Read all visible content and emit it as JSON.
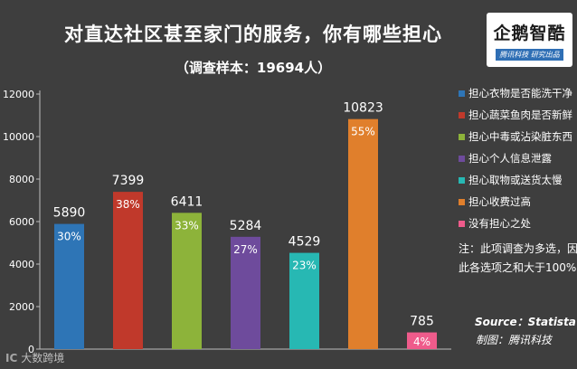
{
  "title": "对直达社区甚至家门的服务，你有哪些担心",
  "subtitle": "（调查样本：19694人）",
  "logo": {
    "main": "企鹅智酷",
    "sub": "腾讯科技  研究出品"
  },
  "note": "注：此项调查为多选，因此各选项之和大于100%",
  "source": "Source：Statista",
  "credit": "制图：腾讯科技",
  "watermark": {
    "logo": "IC",
    "text": "大数跨境"
  },
  "chart_data": {
    "type": "bar",
    "categories": [
      "担心衣物是否能洗干净",
      "担心蔬菜鱼肉是否新鲜",
      "担心中毒或沾染脏东西",
      "担心个人信息泄露",
      "担心取物或送货太慢",
      "担心收费过高",
      "没有担心之处"
    ],
    "values": [
      5890,
      7399,
      6411,
      5284,
      4529,
      10823,
      785
    ],
    "percent_labels": [
      "30%",
      "38%",
      "33%",
      "27%",
      "23%",
      "55%",
      "4%"
    ],
    "value_labels": [
      "5890",
      "7399",
      "6411",
      "5284",
      "4529",
      "10823",
      "785"
    ],
    "colors": [
      "#2e75b6",
      "#c0392b",
      "#8db33a",
      "#6e4b9c",
      "#27b8b3",
      "#e07f2c",
      "#ef5b8b"
    ],
    "ylim": [
      0,
      12000
    ],
    "yticks": [
      "0",
      "2000",
      "4000",
      "6000",
      "8000",
      "10000",
      "12000"
    ],
    "grid": false,
    "legend": "right"
  }
}
